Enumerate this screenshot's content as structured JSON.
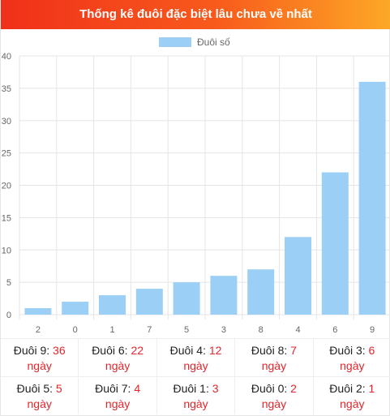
{
  "header": {
    "title": "Thống kê đuôi đặc biệt lâu chưa về nhất"
  },
  "chart_data": {
    "type": "bar",
    "legend": {
      "label": "Đuôi số",
      "placement": "top-center",
      "color": "#9ccff5"
    },
    "categories": [
      "2",
      "0",
      "1",
      "7",
      "5",
      "3",
      "8",
      "4",
      "6",
      "9"
    ],
    "series": [
      {
        "name": "Đuôi số",
        "values": [
          1,
          2,
          3,
          4,
          5,
          6,
          7,
          12,
          22,
          36
        ]
      }
    ],
    "ylim": [
      0,
      40
    ],
    "yticks": [
      "0",
      "5",
      "10",
      "15",
      "20",
      "25",
      "30",
      "35",
      "40"
    ],
    "grid": true,
    "bar_color": "#9ccff5",
    "xlabel": "",
    "ylabel": ""
  },
  "stats": {
    "unit": "ngày",
    "rows": [
      [
        {
          "label": "Đuôi 9:",
          "value": "36"
        },
        {
          "label": "Đuôi 6:",
          "value": "22"
        },
        {
          "label": "Đuôi 4:",
          "value": "12"
        },
        {
          "label": "Đuôi 8:",
          "value": "7"
        },
        {
          "label": "Đuôi 3:",
          "value": "6"
        }
      ],
      [
        {
          "label": "Đuôi 5:",
          "value": "5"
        },
        {
          "label": "Đuôi 7:",
          "value": "4"
        },
        {
          "label": "Đuôi 1:",
          "value": "3"
        },
        {
          "label": "Đuôi 0:",
          "value": "2"
        },
        {
          "label": "Đuôi 2:",
          "value": "1"
        }
      ]
    ]
  }
}
